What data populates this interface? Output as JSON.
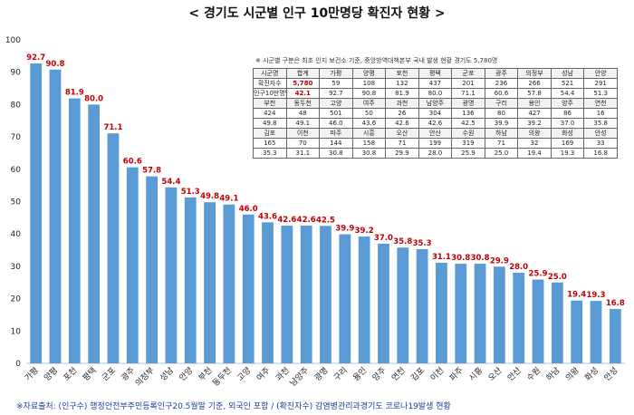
{
  "title": "< 경기도 시군별 인구 10만명당 확진자 현황 >",
  "note": "※ 시군별 구분은 최초 인지 보건소 기준, 중앙방역대책본부 국내 발생 현황 경기도 5,780명",
  "source": "※자료출처: (인구수) 행정안전부주민등록인구20.5월말 기준, 외국인 포함 / (확진자수) 감염병관리과경기도 코로나19발생 현황",
  "colors": {
    "bar": "#5b9bd5",
    "label": "#c00000",
    "source": "#1f3b9c"
  },
  "chart_data": {
    "type": "bar",
    "title": "< 경기도 시군별 인구 10만명당 확진자 현황 >",
    "ylim": [
      0,
      100
    ],
    "yticks": [
      0,
      10,
      20,
      30,
      40,
      50,
      60,
      70,
      80,
      90,
      100
    ],
    "grid": false,
    "categories": [
      "가평",
      "양평",
      "포천",
      "평택",
      "군포",
      "광주",
      "의정부",
      "성남",
      "안양",
      "부천",
      "동두천",
      "고양",
      "여주",
      "과천",
      "남양주",
      "광명",
      "구리",
      "용인",
      "양주",
      "연천",
      "김포",
      "이천",
      "파주",
      "시흥",
      "오산",
      "안산",
      "수원",
      "하남",
      "의왕",
      "화성",
      "안성"
    ],
    "values": [
      92.7,
      90.8,
      81.9,
      80.0,
      71.1,
      60.6,
      57.8,
      54.4,
      51.3,
      49.8,
      49.1,
      46.0,
      43.6,
      42.6,
      42.6,
      42.5,
      39.9,
      39.2,
      37.0,
      35.8,
      35.3,
      31.1,
      30.8,
      30.8,
      29.9,
      28.0,
      25.9,
      25.0,
      19.4,
      19.3,
      16.8
    ],
    "value_labels": [
      "92.7",
      "90.8",
      "81.9",
      "80.0",
      "71.1",
      "60.6",
      "57.8",
      "54.4",
      "51.3",
      "49.8",
      "49.1",
      "46.0",
      "43.6",
      "42.6",
      "42.6",
      "42.5",
      "39.9",
      "39.2",
      "37.0",
      "35.8",
      "35.3",
      "31.1",
      "30.8",
      "30.8",
      "29.9",
      "28.0",
      "25.9",
      "25.0",
      "19.4",
      "19.3",
      "16.8"
    ]
  },
  "table": {
    "rows": [
      {
        "header": true,
        "cells": [
          "시군명",
          "합계",
          "가평",
          "양평",
          "포천",
          "평택",
          "군포",
          "광주",
          "의정부",
          "성남",
          "안양"
        ]
      },
      {
        "header": false,
        "cells": [
          "확진자수",
          "5,780",
          "59",
          "108",
          "132",
          "437",
          "201",
          "236",
          "266",
          "521",
          "291"
        ]
      },
      {
        "header": false,
        "cells": [
          "인구10만명당",
          "42.1",
          "92.7",
          "90.8",
          "81.9",
          "80.0",
          "71.1",
          "60.6",
          "57.8",
          "54.4",
          "51.3"
        ]
      },
      {
        "header": true,
        "cells": [
          "부천",
          "동두천",
          "고양",
          "여주",
          "과천",
          "남양주",
          "광명",
          "구리",
          "용인",
          "양주",
          "연천"
        ]
      },
      {
        "header": false,
        "cells": [
          "424",
          "48",
          "501",
          "50",
          "26",
          "304",
          "136",
          "80",
          "427",
          "86",
          "16"
        ]
      },
      {
        "header": false,
        "cells": [
          "49.8",
          "49.1",
          "46.0",
          "43.6",
          "42.6",
          "42.6",
          "42.5",
          "39.9",
          "39.2",
          "37.0",
          "35.8"
        ]
      },
      {
        "header": true,
        "cells": [
          "김포",
          "이천",
          "파주",
          "시흥",
          "오산",
          "안산",
          "수원",
          "하남",
          "의왕",
          "화성",
          "안성"
        ]
      },
      {
        "header": false,
        "cells": [
          "165",
          "70",
          "144",
          "158",
          "71",
          "199",
          "319",
          "71",
          "32",
          "169",
          "33"
        ]
      },
      {
        "header": false,
        "cells": [
          "35.3",
          "31.1",
          "30.8",
          "30.8",
          "29.9",
          "28.0",
          "25.9",
          "25.0",
          "19.4",
          "19.3",
          "16.8"
        ]
      }
    ]
  }
}
